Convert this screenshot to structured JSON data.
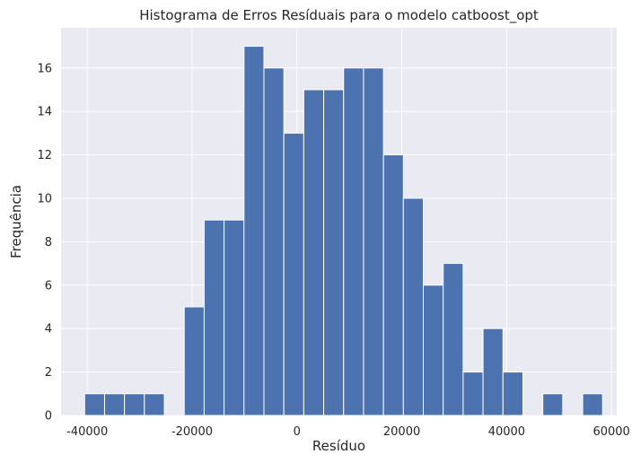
{
  "chart_data": {
    "type": "bar",
    "title": "Histograma de Erros Resíduais para o modelo catboost_opt",
    "xlabel": "Resíduo",
    "ylabel": "Frequência",
    "xlim": [
      -45000,
      61000
    ],
    "ylim": [
      0,
      17.85
    ],
    "xticks": [
      -40000,
      -20000,
      0,
      20000,
      40000,
      60000
    ],
    "yticks": [
      0,
      2,
      4,
      6,
      8,
      10,
      12,
      14,
      16
    ],
    "grid": true,
    "colors": {
      "bar": "#4c72b0",
      "background": "#eaeaf2",
      "grid": "#ffffff"
    },
    "bin_edges": [
      -40500,
      -36700,
      -32900,
      -29100,
      -25300,
      -21500,
      -17700,
      -13900,
      -10100,
      -6300,
      -2500,
      1300,
      5100,
      8900,
      12700,
      16500,
      20300,
      24100,
      27900,
      31700,
      35500,
      39300,
      43100,
      46900,
      50700,
      54500,
      58300
    ],
    "values": [
      1,
      1,
      1,
      1,
      0,
      5,
      9,
      9,
      17,
      16,
      13,
      15,
      15,
      16,
      16,
      12,
      10,
      6,
      7,
      2,
      4,
      2,
      0,
      1,
      0,
      1
    ]
  }
}
